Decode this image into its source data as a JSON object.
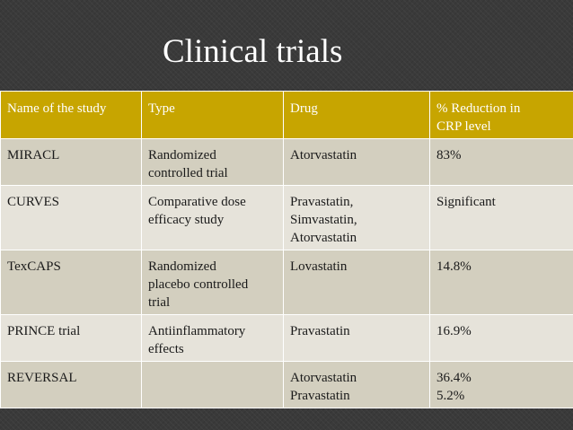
{
  "slide": {
    "title": "Clinical trials",
    "background_color": "#3a3a3a",
    "header_color": "#c7a500"
  },
  "table": {
    "headers": [
      "Name of the study",
      "Type",
      "Drug",
      "% Reduction in\nCRP level"
    ],
    "rows": [
      [
        "MIRACL",
        "Randomized\ncontrolled trial",
        "Atorvastatin",
        "83%"
      ],
      [
        "CURVES",
        "Comparative dose\nefficacy study",
        "Pravastatin,\nSimvastatin,\nAtorvastatin",
        "Significant"
      ],
      [
        "TexCAPS",
        "Randomized\nplacebo controlled\ntrial",
        "Lovastatin",
        "14.8%"
      ],
      [
        "PRINCE trial",
        "Antiinflammatory\neffects",
        "Pravastatin",
        "16.9%"
      ],
      [
        "REVERSAL",
        "",
        "Atorvastatin\nPravastatin",
        "36.4%\n5.2%"
      ]
    ]
  }
}
